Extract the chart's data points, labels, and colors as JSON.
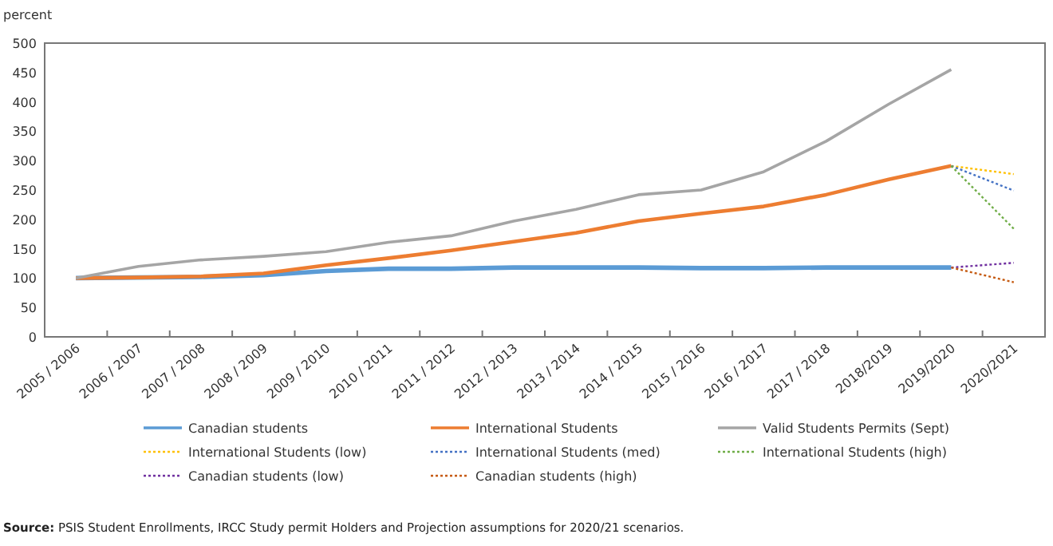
{
  "chart_data": {
    "type": "line",
    "ylabel": "percent",
    "categories": [
      "2005 / 2006",
      "2006 / 2007",
      "2007 / 2008",
      "2008 / 2009",
      "2009 / 2010",
      "2010 / 2011",
      "2011 / 2012",
      "2012 / 2013",
      "2013 / 2014",
      "2014 / 2015",
      "2015 / 2016",
      "2016 / 2017",
      "2017 / 2018",
      "2018/2019",
      "2019/2020",
      "2020/2021"
    ],
    "ylim": [
      0,
      500
    ],
    "yticks": [
      0,
      50,
      100,
      150,
      200,
      250,
      300,
      350,
      400,
      450,
      500
    ],
    "grid": false,
    "legend": "bottom",
    "marker": "none",
    "series": [
      {
        "name": "Canadian students",
        "color": "#5b9bd5",
        "line_style": "solid",
        "values": [
          100,
          101,
          102,
          105,
          112,
          116,
          116,
          118,
          118,
          118,
          117,
          117,
          118,
          118,
          118,
          null
        ]
      },
      {
        "name": "International Students",
        "color": "#ed7d31",
        "line_style": "solid",
        "values": [
          100,
          101,
          103,
          108,
          122,
          134,
          147,
          162,
          177,
          197,
          210,
          222,
          242,
          268,
          291,
          null
        ]
      },
      {
        "name": "Valid Students Permits (Sept)",
        "color": "#a5a5a5",
        "line_style": "solid",
        "values": [
          100,
          120,
          131,
          137,
          145,
          161,
          172,
          197,
          217,
          242,
          250,
          281,
          333,
          396,
          455,
          null
        ]
      },
      {
        "name": "International Students (low)",
        "color": "#ffc000",
        "line_style": "dotted",
        "values": [
          null,
          null,
          null,
          null,
          null,
          null,
          null,
          null,
          null,
          null,
          null,
          null,
          null,
          null,
          291,
          277
        ]
      },
      {
        "name": "International Students (med)",
        "color": "#4472c4",
        "line_style": "dotted",
        "values": [
          null,
          null,
          null,
          null,
          null,
          null,
          null,
          null,
          null,
          null,
          null,
          null,
          null,
          null,
          291,
          249
        ]
      },
      {
        "name": "International Students (high)",
        "color": "#70ad47",
        "line_style": "dotted",
        "values": [
          null,
          null,
          null,
          null,
          null,
          null,
          null,
          null,
          null,
          null,
          null,
          null,
          null,
          null,
          291,
          184
        ]
      },
      {
        "name": "Canadian students (low)",
        "color": "#7030a0",
        "line_style": "dotted",
        "values": [
          null,
          null,
          null,
          null,
          null,
          null,
          null,
          null,
          null,
          null,
          null,
          null,
          null,
          null,
          118,
          126
        ]
      },
      {
        "name": "Canadian students (high)",
        "color": "#c55a11",
        "line_style": "dotted",
        "values": [
          null,
          null,
          null,
          null,
          null,
          null,
          null,
          null,
          null,
          null,
          null,
          null,
          null,
          null,
          118,
          93
        ]
      }
    ],
    "annotations": [
      "Source: PSIS Student Enrollments, IRCC Study permit Holders and Projection assumptions for 2020/21 scenarios."
    ]
  }
}
